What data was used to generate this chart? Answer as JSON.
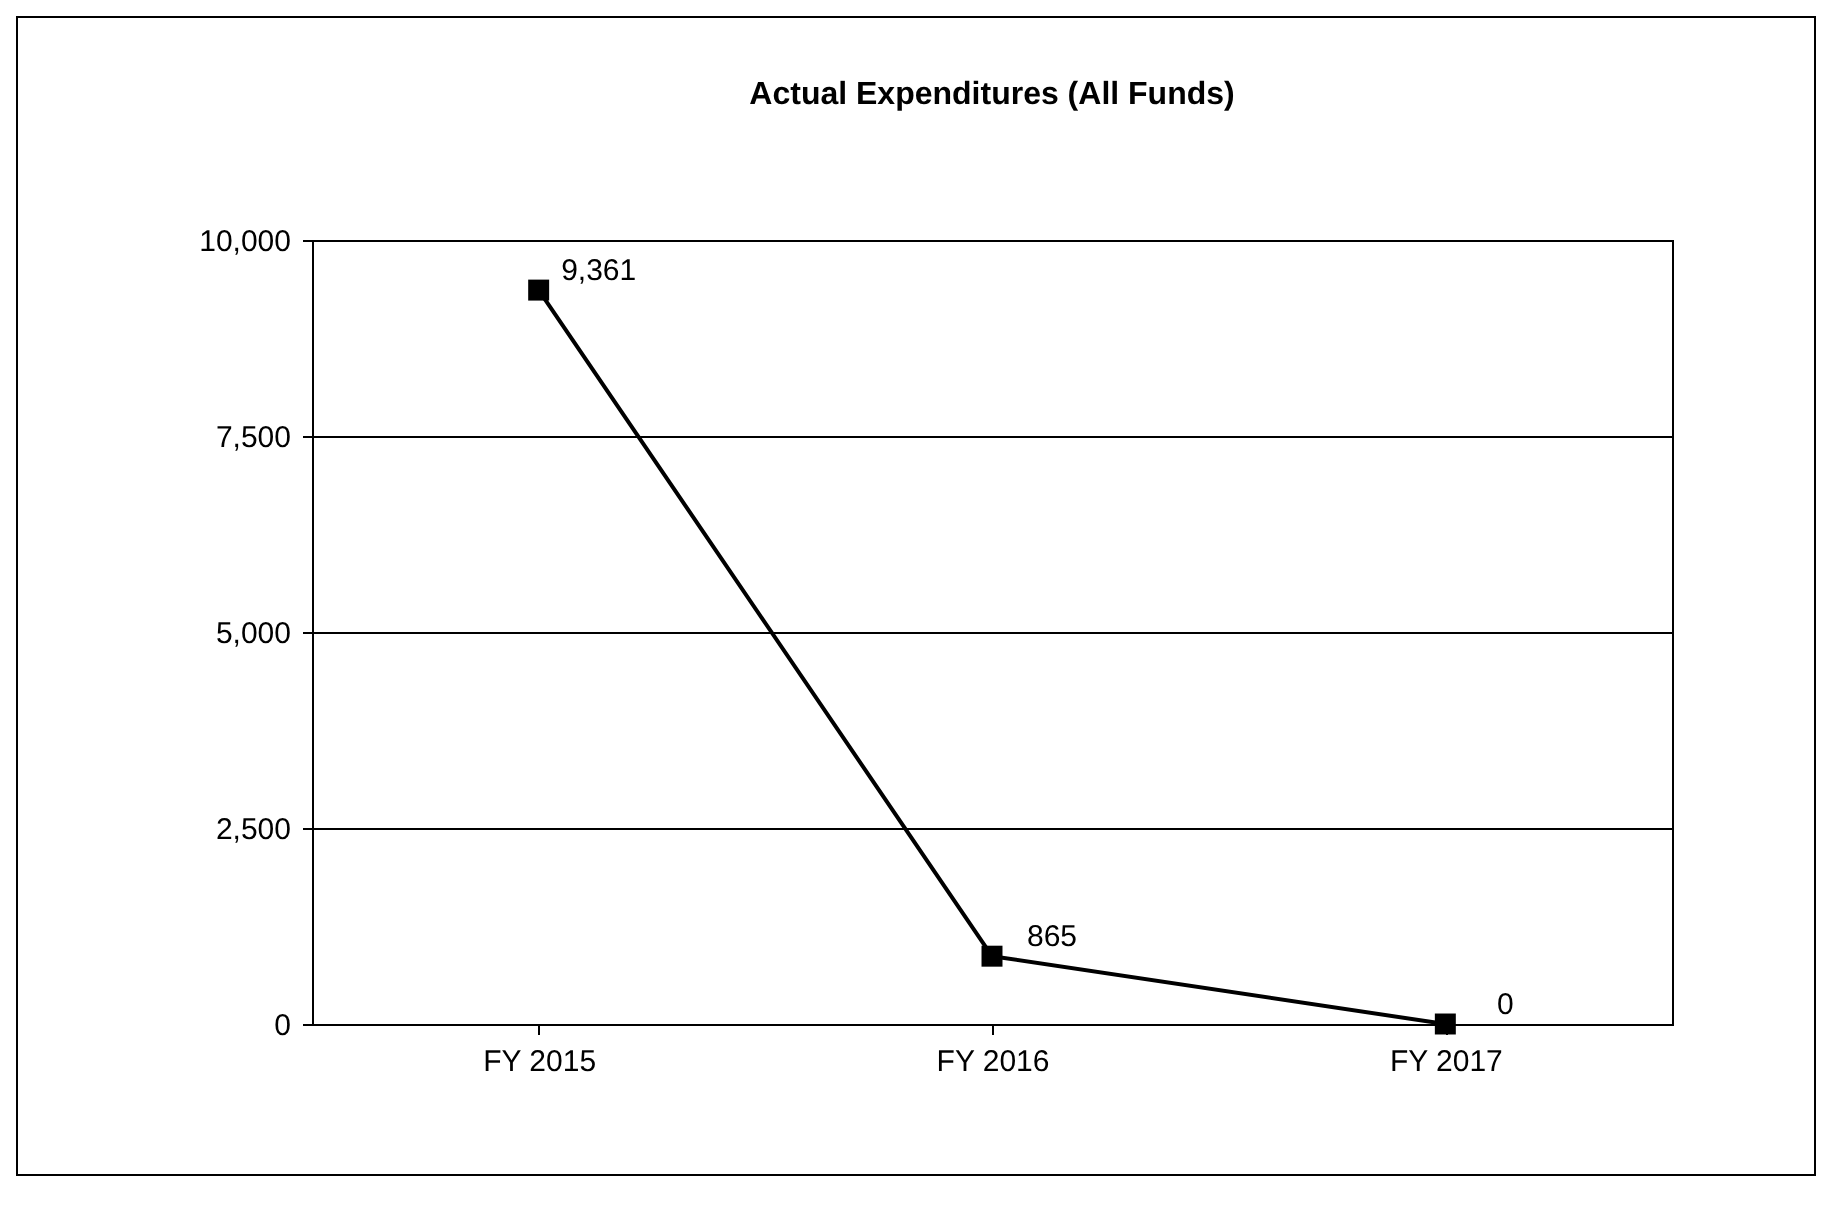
{
  "chart_data": {
    "type": "line",
    "title": "Actual Expenditures (All Funds)",
    "categories": [
      "FY 2015",
      "FY 2016",
      "FY 2017"
    ],
    "series": [
      {
        "color": "#000000",
        "values": [
          9361,
          865,
          0
        ],
        "value_labels": [
          "9,361",
          "865",
          "0"
        ]
      }
    ],
    "ylim": [
      0,
      10000
    ],
    "yticks": [
      {
        "value": 0,
        "label": "0"
      },
      {
        "value": 2500,
        "label": "2,500"
      },
      {
        "value": 5000,
        "label": "5,000"
      },
      {
        "value": 7500,
        "label": "7,500"
      },
      {
        "value": 10000,
        "label": "10,000"
      }
    ],
    "grid": "y",
    "marker": "square",
    "line_style": "solid",
    "legend": false
  }
}
